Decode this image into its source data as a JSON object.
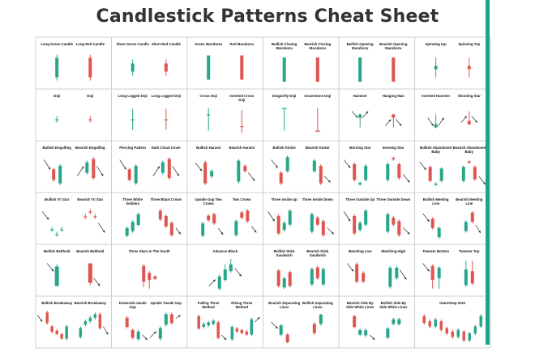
{
  "title": "Candlestick Patterns Cheat Sheet",
  "colors": {
    "bull": "#27a68a",
    "bear": "#e0554f",
    "grid": "#cfcfcf",
    "text": "#111111",
    "bar": "#1aa58b"
  },
  "rows": [
    [
      [
        {
          "label": "Long Green Candle",
          "shape": "long-green"
        },
        {
          "label": "Long Red Candle",
          "shape": "long-red"
        }
      ],
      [
        {
          "label": "Short Green Candle",
          "shape": "short-green"
        },
        {
          "label": "Short Red Candle",
          "shape": "short-red"
        }
      ],
      [
        {
          "label": "Green Marubozu",
          "shape": "maru-green"
        },
        {
          "label": "Red Marubozu",
          "shape": "maru-red"
        }
      ],
      [
        {
          "label": "Bullish Closing Marubozu",
          "shape": "maru-green"
        },
        {
          "label": "Bearish Closing Marubozu",
          "shape": "maru-red"
        }
      ],
      [
        {
          "label": "Bullish Opening Marubozu",
          "shape": "maru-green"
        },
        {
          "label": "Bearish Opening Marubozu",
          "shape": "maru-red"
        }
      ],
      [
        {
          "label": "Spinning top",
          "shape": "spin-green"
        },
        {
          "label": "Spinning Top",
          "shape": "spin-red"
        }
      ]
    ],
    [
      [
        {
          "label": "Doji",
          "shape": "doji-green"
        },
        {
          "label": "Doji",
          "shape": "doji-red"
        }
      ],
      [
        {
          "label": "Long Legged Doji",
          "shape": "ll-doji-green"
        },
        {
          "label": "Long Legged Doji",
          "shape": "ll-doji-red"
        }
      ],
      [
        {
          "label": "Cross Doji",
          "shape": "cross-doji"
        },
        {
          "label": "Inverted Cross Doji",
          "shape": "inv-cross-doji"
        }
      ],
      [
        {
          "label": "Dragonfly Doji",
          "shape": "dragonfly"
        },
        {
          "label": "Gravestone Doji",
          "shape": "gravestone"
        }
      ],
      [
        {
          "label": "Hammer",
          "shape": "hammer"
        },
        {
          "label": "Hanging Man",
          "shape": "hanging"
        }
      ],
      [
        {
          "label": "Inverted Hammer",
          "shape": "inv-hammer"
        },
        {
          "label": "Shooting Star",
          "shape": "shooting"
        }
      ]
    ],
    [
      [
        {
          "label": "Bullish Engulfing",
          "shape": "bull-engulf"
        },
        {
          "label": "Bearish Engulfing",
          "shape": "bear-engulf"
        }
      ],
      [
        {
          "label": "Piercing Pattern",
          "shape": "bull-engulf"
        },
        {
          "label": "Dark Cloud Cover",
          "shape": "bear-engulf"
        }
      ],
      [
        {
          "label": "Bullish Harami",
          "shape": "bull-harami"
        },
        {
          "label": "Bearish Harami",
          "shape": "bear-harami"
        }
      ],
      [
        {
          "label": "Bullish Kicker",
          "shape": "bull-kicker"
        },
        {
          "label": "Bearish Kicker",
          "shape": "bear-kicker"
        }
      ],
      [
        {
          "label": "Morning Star",
          "shape": "morning-star"
        },
        {
          "label": "Evening Star",
          "shape": "evening-star"
        }
      ],
      [
        {
          "label": "Bullish Abandoned Baby",
          "shape": "morning-star"
        },
        {
          "label": "Bearish Abandoned Baby",
          "shape": "evening-star"
        }
      ]
    ],
    [
      [
        {
          "label": "Bullish Tri Star",
          "shape": "tri-bull"
        },
        {
          "label": "Bearish Tri Star",
          "shape": "tri-bear"
        }
      ],
      [
        {
          "label": "Three White Soldiers",
          "shape": "soldiers"
        },
        {
          "label": "Three Black Crows",
          "shape": "crows"
        }
      ],
      [
        {
          "label": "Upside Gap Two Crows",
          "shape": "gap-crows"
        },
        {
          "label": "Two Crows",
          "shape": "gap-crows"
        }
      ],
      [
        {
          "label": "Three Inside Up",
          "shape": "inside-up"
        },
        {
          "label": "Three Inside Down",
          "shape": "inside-down"
        }
      ],
      [
        {
          "label": "Three Outside Up",
          "shape": "inside-up"
        },
        {
          "label": "Three Outside Down",
          "shape": "inside-down"
        }
      ],
      [
        {
          "label": "Bullish Meeting Line",
          "shape": "meet-bull"
        },
        {
          "label": "Bearish Meeting Line",
          "shape": "meet-bear"
        }
      ]
    ],
    [
      [
        {
          "label": "Bullish Belthold",
          "shape": "belt-bull"
        },
        {
          "label": "Bearish Belthold",
          "shape": "belt-bear"
        }
      ],
      [
        {
          "label": "Three Stars In The South",
          "shape": "stars-south",
          "single": true
        }
      ],
      [
        {
          "label": "Advance Block",
          "shape": "advance-block",
          "single": true
        }
      ],
      [
        {
          "label": "Bullish Stick Sandwich",
          "shape": "sandwich-bull"
        },
        {
          "label": "Bearish Stick Sandwich",
          "shape": "sandwich-bear"
        }
      ],
      [
        {
          "label": "Matching Low",
          "shape": "match-low"
        },
        {
          "label": "Matching High",
          "shape": "match-high"
        }
      ],
      [
        {
          "label": "Tweezer Bottom",
          "shape": "tweezer-b"
        },
        {
          "label": "Tweezer Top",
          "shape": "tweezer-t"
        }
      ]
    ],
    [
      [
        {
          "label": "Bullish Breakaway",
          "shape": "break-bull"
        },
        {
          "label": "Bearish Breakaway",
          "shape": "break-bear"
        }
      ],
      [
        {
          "label": "Downside tasuki Gap",
          "shape": "tasuki-down"
        },
        {
          "label": "Upside Tasuki Gap",
          "shape": "tasuki-up"
        }
      ],
      [
        {
          "label": "Falling Three Method",
          "shape": "falling-three"
        },
        {
          "label": "Rising Three Method",
          "shape": "rising-three"
        }
      ],
      [
        {
          "label": "Bearish Separating Lines",
          "shape": "sep-bear"
        },
        {
          "label": "Bullish Separating Lines",
          "shape": "sep-bull"
        }
      ],
      [
        {
          "label": "Bearish Side By Side White Lines",
          "shape": "sbs-bear"
        },
        {
          "label": "Bullish Side By Side White Lines",
          "shape": "sbs-bull"
        }
      ],
      [
        {
          "label": "GameStop 2021",
          "shape": "gamestop",
          "single": true
        }
      ]
    ]
  ]
}
